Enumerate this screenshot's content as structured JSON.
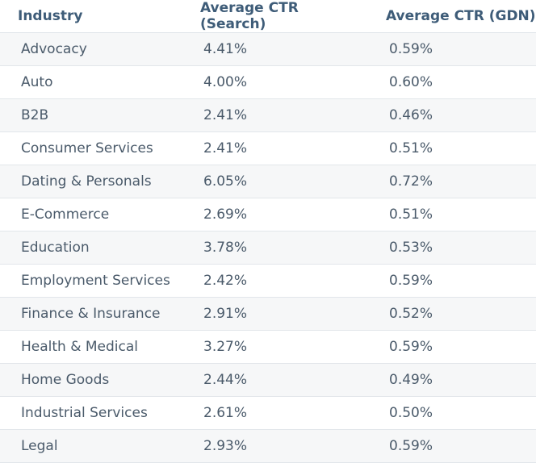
{
  "table": {
    "headers": [
      "Industry",
      "Average CTR (Search)",
      "Average CTR (GDN)"
    ],
    "rows": [
      [
        "Advocacy",
        "4.41%",
        "0.59%"
      ],
      [
        "Auto",
        "4.00%",
        "0.60%"
      ],
      [
        "B2B",
        "2.41%",
        "0.46%"
      ],
      [
        "Consumer Services",
        "2.41%",
        "0.51%"
      ],
      [
        "Dating & Personals",
        "6.05%",
        "0.72%"
      ],
      [
        "E-Commerce",
        "2.69%",
        "0.51%"
      ],
      [
        "Education",
        "3.78%",
        "0.53%"
      ],
      [
        "Employment Services",
        "2.42%",
        "0.59%"
      ],
      [
        "Finance & Insurance",
        "2.91%",
        "0.52%"
      ],
      [
        "Health & Medical",
        "3.27%",
        "0.59%"
      ],
      [
        "Home Goods",
        "2.44%",
        "0.49%"
      ],
      [
        "Industrial Services",
        "2.61%",
        "0.50%"
      ],
      [
        "Legal",
        "2.93%",
        "0.59%"
      ]
    ]
  },
  "colors": {
    "header_text": "#3e5c78",
    "cell_text": "#4a5a6a",
    "stripe": "#f6f7f8",
    "divider": "#e2e6ea"
  }
}
